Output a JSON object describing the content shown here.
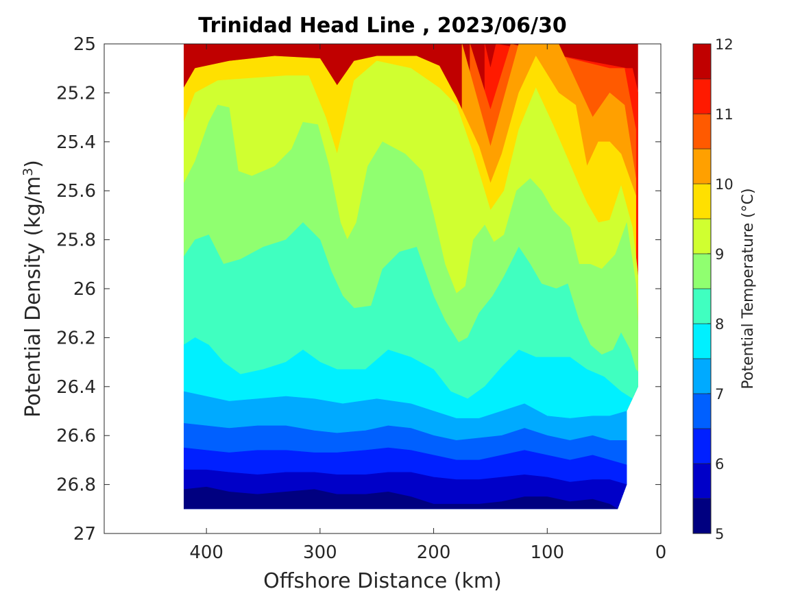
{
  "chart_data": {
    "type": "filled-contour",
    "title": "Trinidad Head Line , 2023/06/30",
    "xlabel": "Offshore Distance (km)",
    "ylabel": "Potential Density (kg/m",
    "ylabel_sup": "3",
    "ylabel_end": ")",
    "xlim": [
      490,
      0
    ],
    "ylim": [
      25,
      27
    ],
    "x_reversed": true,
    "y_reversed": true,
    "xticks": [
      400,
      300,
      200,
      100,
      0
    ],
    "yticks": [
      25,
      25.2,
      25.4,
      25.6,
      25.8,
      26,
      26.2,
      26.4,
      26.6,
      26.8,
      27
    ],
    "ytick_labels": [
      "25",
      "25.2",
      "25.4",
      "25.6",
      "25.8",
      "26",
      "26.2",
      "26.4",
      "26.6",
      "26.8",
      "27"
    ],
    "data_extent": {
      "x": [
        420,
        20
      ],
      "y_bottom": 26.9
    },
    "colorbar": {
      "label": "Potential Temperature (°C)",
      "range": [
        5,
        12
      ],
      "ticks": [
        5,
        6,
        7,
        8,
        9,
        10,
        11,
        12
      ],
      "levels": [
        5,
        5.5,
        6,
        6.5,
        7,
        7.5,
        8,
        8.5,
        9,
        9.5,
        10,
        10.5,
        11,
        11.5,
        12
      ],
      "colors": [
        "#000080",
        "#0000c8",
        "#0020ff",
        "#0060ff",
        "#00aaff",
        "#00f0ff",
        "#40ffc0",
        "#90ff70",
        "#d0ff30",
        "#ffe000",
        "#ffa000",
        "#ff5a00",
        "#ff1a00",
        "#c00000"
      ]
    },
    "isotherms": [
      {
        "t": 11.5,
        "pts": [
          [
            155,
            25
          ],
          [
            150,
            25.1
          ],
          [
            145,
            25
          ],
          [
            30,
            25.1
          ],
          [
            25,
            25.1
          ],
          [
            20,
            25.2
          ]
        ]
      },
      {
        "t": 11.0,
        "pts": [
          [
            168,
            25
          ],
          [
            150,
            25.27
          ],
          [
            132,
            25
          ],
          [
            45,
            25.1
          ],
          [
            32,
            25.1
          ],
          [
            22,
            25.35
          ]
        ]
      },
      {
        "t": 10.5,
        "pts": [
          [
            175,
            25
          ],
          [
            150,
            25.42
          ],
          [
            125,
            25
          ],
          [
            90,
            25
          ],
          [
            75,
            25.15
          ],
          [
            60,
            25.3
          ],
          [
            45,
            25.2
          ],
          [
            32,
            25.25
          ],
          [
            22,
            25.55
          ]
        ]
      },
      {
        "t": 10.0,
        "pts": [
          [
            420,
            25.18
          ],
          [
            410,
            25.1
          ],
          [
            380,
            25.07
          ],
          [
            340,
            25.05
          ],
          [
            300,
            25.06
          ],
          [
            285,
            25.17
          ],
          [
            270,
            25.07
          ],
          [
            250,
            25.05
          ],
          [
            215,
            25.05
          ],
          [
            195,
            25.09
          ],
          [
            180,
            25.22
          ],
          [
            160,
            25.42
          ],
          [
            150,
            25.57
          ],
          [
            140,
            25.45
          ],
          [
            125,
            25.2
          ],
          [
            110,
            25.05
          ],
          [
            90,
            25.2
          ],
          [
            75,
            25.25
          ],
          [
            65,
            25.5
          ],
          [
            55,
            25.4
          ],
          [
            45,
            25.4
          ],
          [
            35,
            25.45
          ],
          [
            22,
            25.62
          ]
        ]
      },
      {
        "t": 9.5,
        "pts": [
          [
            420,
            25.32
          ],
          [
            410,
            25.2
          ],
          [
            390,
            25.15
          ],
          [
            360,
            25.14
          ],
          [
            330,
            25.13
          ],
          [
            310,
            25.13
          ],
          [
            295,
            25.3
          ],
          [
            285,
            25.45
          ],
          [
            270,
            25.15
          ],
          [
            250,
            25.07
          ],
          [
            220,
            25.1
          ],
          [
            195,
            25.18
          ],
          [
            180,
            25.25
          ],
          [
            165,
            25.45
          ],
          [
            150,
            25.68
          ],
          [
            138,
            25.6
          ],
          [
            125,
            25.35
          ],
          [
            110,
            25.18
          ],
          [
            95,
            25.33
          ],
          [
            82,
            25.47
          ],
          [
            70,
            25.6
          ],
          [
            65,
            25.65
          ],
          [
            55,
            25.73
          ],
          [
            45,
            25.72
          ],
          [
            35,
            25.58
          ],
          [
            25,
            25.75
          ],
          [
            20,
            25.95
          ]
        ]
      },
      {
        "t": 9.0,
        "pts": [
          [
            420,
            25.57
          ],
          [
            410,
            25.48
          ],
          [
            398,
            25.32
          ],
          [
            390,
            25.25
          ],
          [
            380,
            25.26
          ],
          [
            372,
            25.52
          ],
          [
            360,
            25.54
          ],
          [
            340,
            25.5
          ],
          [
            325,
            25.43
          ],
          [
            315,
            25.32
          ],
          [
            302,
            25.33
          ],
          [
            292,
            25.5
          ],
          [
            282,
            25.73
          ],
          [
            276,
            25.8
          ],
          [
            268,
            25.73
          ],
          [
            258,
            25.5
          ],
          [
            245,
            25.4
          ],
          [
            225,
            25.45
          ],
          [
            210,
            25.52
          ],
          [
            200,
            25.7
          ],
          [
            190,
            25.9
          ],
          [
            180,
            26.02
          ],
          [
            172,
            25.99
          ],
          [
            165,
            25.8
          ],
          [
            155,
            25.74
          ],
          [
            147,
            25.81
          ],
          [
            138,
            25.78
          ],
          [
            127,
            25.6
          ],
          [
            115,
            25.55
          ],
          [
            105,
            25.6
          ],
          [
            95,
            25.68
          ],
          [
            80,
            25.75
          ],
          [
            72,
            25.9
          ],
          [
            62,
            25.9
          ],
          [
            52,
            25.92
          ],
          [
            40,
            25.86
          ],
          [
            30,
            25.73
          ],
          [
            22,
            25.98
          ],
          [
            20,
            26.15
          ]
        ]
      },
      {
        "t": 8.5,
        "pts": [
          [
            420,
            25.87
          ],
          [
            410,
            25.8
          ],
          [
            398,
            25.78
          ],
          [
            385,
            25.9
          ],
          [
            370,
            25.88
          ],
          [
            350,
            25.83
          ],
          [
            330,
            25.8
          ],
          [
            315,
            25.73
          ],
          [
            300,
            25.8
          ],
          [
            290,
            25.93
          ],
          [
            280,
            26.03
          ],
          [
            270,
            26.08
          ],
          [
            255,
            26.07
          ],
          [
            245,
            25.92
          ],
          [
            230,
            25.85
          ],
          [
            215,
            25.83
          ],
          [
            200,
            26.03
          ],
          [
            190,
            26.13
          ],
          [
            178,
            26.22
          ],
          [
            170,
            26.2
          ],
          [
            160,
            26.1
          ],
          [
            148,
            26.03
          ],
          [
            138,
            25.95
          ],
          [
            125,
            25.83
          ],
          [
            115,
            25.9
          ],
          [
            105,
            25.98
          ],
          [
            92,
            26
          ],
          [
            82,
            25.98
          ],
          [
            72,
            26.13
          ],
          [
            62,
            26.23
          ],
          [
            52,
            26.27
          ],
          [
            42,
            26.25
          ],
          [
            35,
            26.18
          ],
          [
            27,
            26.25
          ],
          [
            22,
            26.33
          ],
          [
            20,
            26.34
          ]
        ]
      },
      {
        "t": 8.0,
        "pts": [
          [
            420,
            26.23
          ],
          [
            410,
            26.2
          ],
          [
            398,
            26.23
          ],
          [
            385,
            26.3
          ],
          [
            370,
            26.35
          ],
          [
            350,
            26.33
          ],
          [
            330,
            26.3
          ],
          [
            315,
            26.25
          ],
          [
            300,
            26.3
          ],
          [
            285,
            26.33
          ],
          [
            260,
            26.33
          ],
          [
            240,
            26.25
          ],
          [
            220,
            26.28
          ],
          [
            200,
            26.33
          ],
          [
            185,
            26.42
          ],
          [
            170,
            26.45
          ],
          [
            155,
            26.4
          ],
          [
            140,
            26.32
          ],
          [
            125,
            26.25
          ],
          [
            110,
            26.28
          ],
          [
            95,
            26.28
          ],
          [
            80,
            26.28
          ],
          [
            65,
            26.33
          ],
          [
            50,
            26.36
          ],
          [
            35,
            26.42
          ],
          [
            25,
            26.45
          ],
          [
            20,
            26.4
          ]
        ]
      },
      {
        "t": 7.5,
        "pts": [
          [
            420,
            26.42
          ],
          [
            400,
            26.44
          ],
          [
            380,
            26.46
          ],
          [
            355,
            26.45
          ],
          [
            330,
            26.44
          ],
          [
            305,
            26.45
          ],
          [
            280,
            26.47
          ],
          [
            250,
            26.45
          ],
          [
            220,
            26.47
          ],
          [
            200,
            26.5
          ],
          [
            180,
            26.53
          ],
          [
            160,
            26.53
          ],
          [
            140,
            26.5
          ],
          [
            120,
            26.47
          ],
          [
            100,
            26.52
          ],
          [
            80,
            26.53
          ],
          [
            60,
            26.52
          ],
          [
            45,
            26.52
          ],
          [
            30,
            26.5
          ]
        ]
      },
      {
        "t": 7.0,
        "pts": [
          [
            420,
            26.55
          ],
          [
            400,
            26.56
          ],
          [
            380,
            26.57
          ],
          [
            355,
            26.56
          ],
          [
            330,
            26.56
          ],
          [
            305,
            26.58
          ],
          [
            285,
            26.59
          ],
          [
            260,
            26.58
          ],
          [
            240,
            26.56
          ],
          [
            220,
            26.57
          ],
          [
            200,
            26.6
          ],
          [
            180,
            26.62
          ],
          [
            160,
            26.61
          ],
          [
            140,
            26.6
          ],
          [
            120,
            26.57
          ],
          [
            100,
            26.6
          ],
          [
            80,
            26.62
          ],
          [
            60,
            26.6
          ],
          [
            45,
            26.62
          ],
          [
            30,
            26.62
          ]
        ]
      },
      {
        "t": 6.5,
        "pts": [
          [
            420,
            26.65
          ],
          [
            400,
            26.66
          ],
          [
            380,
            26.67
          ],
          [
            355,
            26.66
          ],
          [
            330,
            26.66
          ],
          [
            305,
            26.67
          ],
          [
            285,
            26.67
          ],
          [
            260,
            26.66
          ],
          [
            240,
            26.65
          ],
          [
            220,
            26.66
          ],
          [
            200,
            26.68
          ],
          [
            180,
            26.7
          ],
          [
            160,
            26.7
          ],
          [
            140,
            26.68
          ],
          [
            120,
            26.66
          ],
          [
            100,
            26.68
          ],
          [
            80,
            26.7
          ],
          [
            60,
            26.68
          ],
          [
            45,
            26.7
          ],
          [
            30,
            26.72
          ]
        ]
      },
      {
        "t": 6.0,
        "pts": [
          [
            420,
            26.74
          ],
          [
            400,
            26.74
          ],
          [
            380,
            26.75
          ],
          [
            355,
            26.76
          ],
          [
            330,
            26.75
          ],
          [
            305,
            26.75
          ],
          [
            285,
            26.76
          ],
          [
            260,
            26.76
          ],
          [
            240,
            26.75
          ],
          [
            220,
            26.75
          ],
          [
            200,
            26.77
          ],
          [
            180,
            26.78
          ],
          [
            160,
            26.78
          ],
          [
            140,
            26.77
          ],
          [
            120,
            26.76
          ],
          [
            100,
            26.77
          ],
          [
            80,
            26.79
          ],
          [
            60,
            26.78
          ],
          [
            45,
            26.78
          ],
          [
            30,
            26.8
          ]
        ]
      },
      {
        "t": 5.5,
        "pts": [
          [
            420,
            26.82
          ],
          [
            400,
            26.81
          ],
          [
            380,
            26.83
          ],
          [
            355,
            26.84
          ],
          [
            330,
            26.83
          ],
          [
            305,
            26.82
          ],
          [
            285,
            26.84
          ],
          [
            260,
            26.84
          ],
          [
            240,
            26.83
          ],
          [
            220,
            26.85
          ],
          [
            200,
            26.88
          ],
          [
            180,
            26.88
          ],
          [
            160,
            26.88
          ],
          [
            140,
            26.87
          ],
          [
            120,
            26.85
          ],
          [
            100,
            26.85
          ],
          [
            80,
            26.87
          ],
          [
            60,
            26.86
          ],
          [
            45,
            26.88
          ],
          [
            38,
            26.9
          ]
        ]
      }
    ]
  }
}
